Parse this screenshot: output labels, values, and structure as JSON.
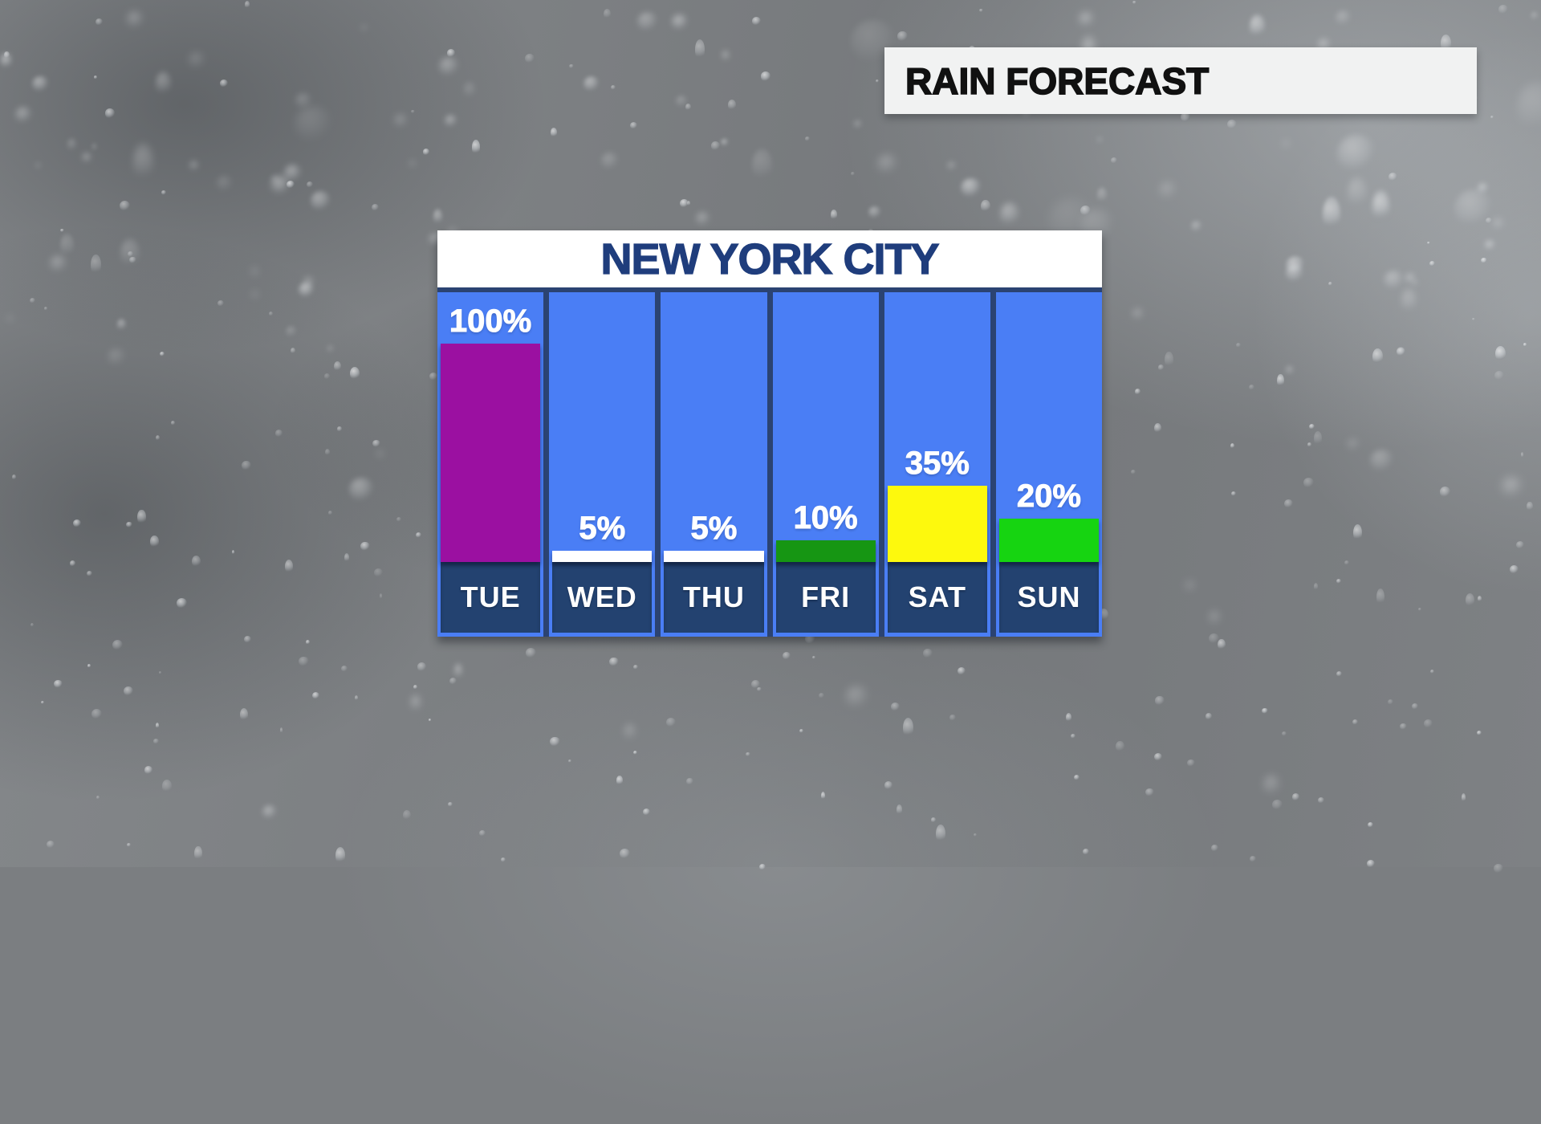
{
  "header": {
    "title": "RAIN FORECAST"
  },
  "chart_data": {
    "type": "bar",
    "title": "NEW YORK CITY",
    "categories": [
      "TUE",
      "WED",
      "THU",
      "FRI",
      "SAT",
      "SUN"
    ],
    "values": [
      100,
      5,
      5,
      10,
      35,
      20
    ],
    "unit": "%",
    "data_labels": [
      "100%",
      "5%",
      "5%",
      "10%",
      "35%",
      "20%"
    ],
    "bar_colors": [
      "#9b10a1",
      "#ffffff",
      "#ffffff",
      "#169613",
      "#fdf90d",
      "#16d411"
    ],
    "ylim": [
      0,
      124
    ],
    "grid": false,
    "legend_position": "none",
    "label_color": "#ffffff"
  },
  "palette": {
    "column_blue": "#4a7ef5",
    "divider_navy": "#2b4372",
    "labelbox_navy": "#234270",
    "title_navy": "#1f3d7c",
    "header_bg": "#f1f2f2",
    "header_text": "#111111",
    "percent_text": "#ffffff"
  }
}
